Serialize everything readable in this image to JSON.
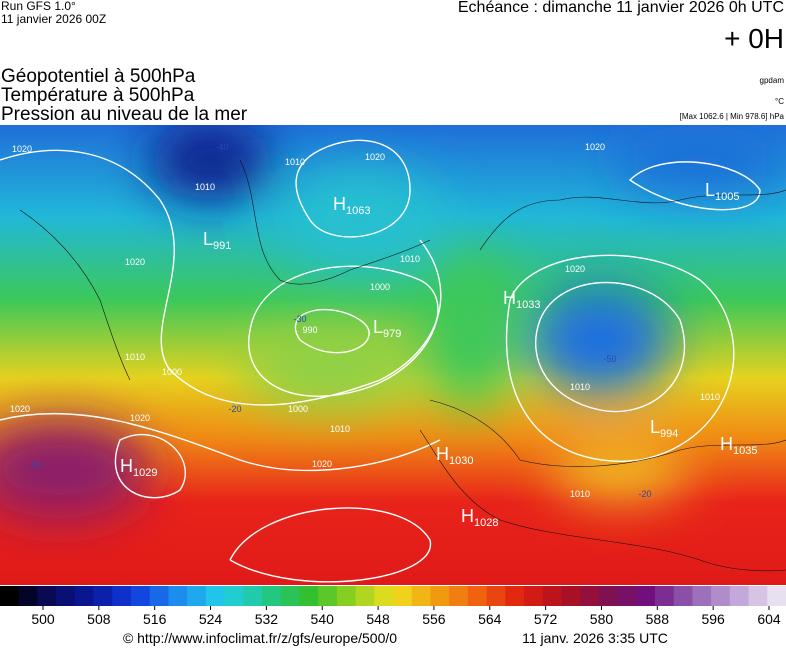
{
  "header": {
    "run": "Run GFS 1.0°",
    "date": "11 janvier 2026 00Z",
    "echeance": "Echéance : dimanche 11 janvier 2026 0h UTC",
    "lead": "+ 0H"
  },
  "titles": [
    "Géopotentiel à 500hPa",
    "Température à 500hPa",
    "Pression au niveau de la mer"
  ],
  "units": [
    "gpdam",
    "°C",
    "[Max 1062.6 | Min 978.6] hPa"
  ],
  "pressure_centers": [
    {
      "kind": "H",
      "value": 1063
    },
    {
      "kind": "L",
      "value": 991
    },
    {
      "kind": "L",
      "value": 979
    },
    {
      "kind": "H",
      "value": 1033
    },
    {
      "kind": "L",
      "value": 1005
    },
    {
      "kind": "L",
      "value": 994
    },
    {
      "kind": "H",
      "value": 1035
    },
    {
      "kind": "H",
      "value": 1029
    },
    {
      "kind": "H",
      "value": 1030
    },
    {
      "kind": "H",
      "value": 1028
    }
  ],
  "isobar_labels": [
    1020,
    1010,
    1020,
    1010,
    1000,
    990,
    1000,
    1010,
    1020,
    1010,
    1000,
    1010,
    1020,
    1020,
    1020,
    1020,
    1010,
    1010,
    1010,
    1020
  ],
  "temperature_labels": [
    -20,
    -30,
    -40,
    -10,
    -50,
    -20
  ],
  "colorbar": {
    "range": [
      500,
      604
    ],
    "ticks": [
      500,
      508,
      516,
      524,
      532,
      540,
      548,
      556,
      564,
      572,
      580,
      588,
      596,
      604
    ]
  },
  "footer": {
    "url": "© http://www.infoclimat.fr/z/gfs/europe/500/0",
    "time": "11 janv. 2026  3:35 UTC"
  }
}
